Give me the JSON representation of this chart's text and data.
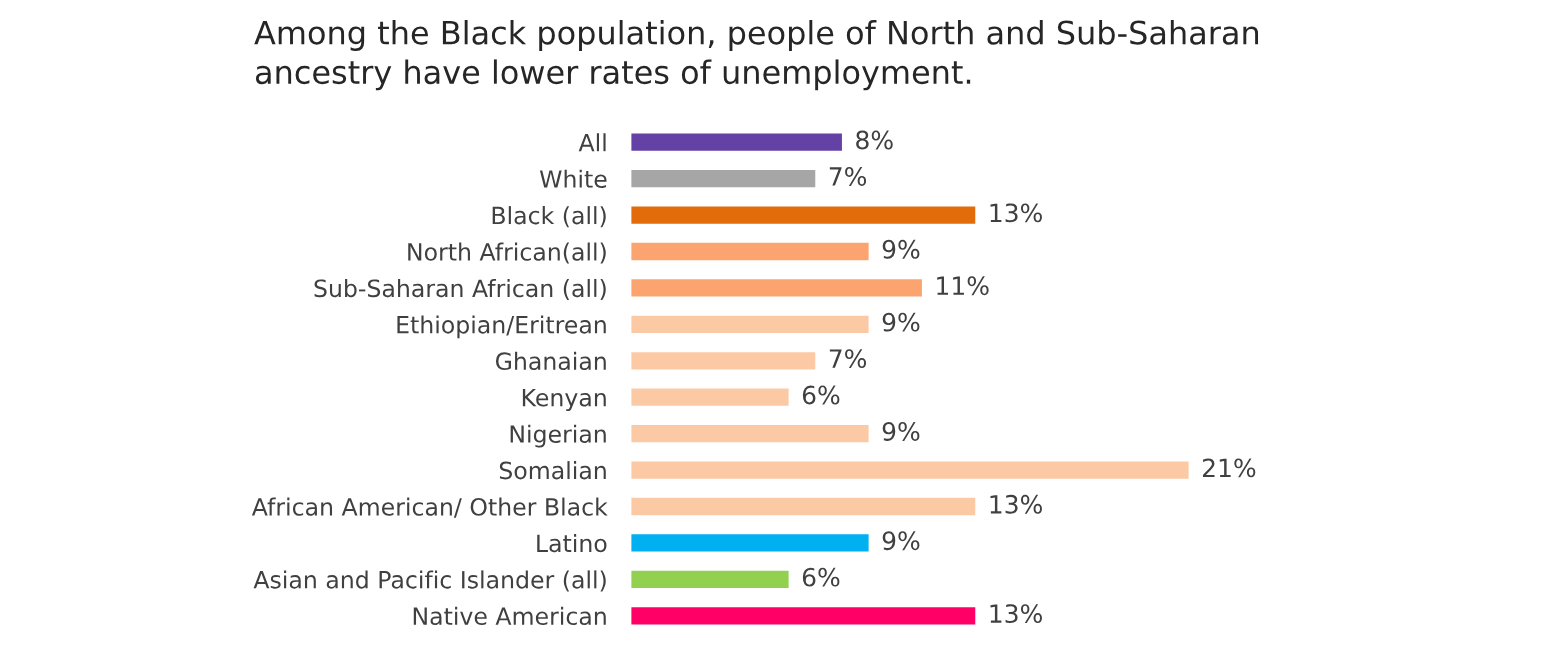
{
  "chart_data": {
    "type": "bar",
    "orientation": "horizontal",
    "title": "Among the Black population, people of North and Sub-Saharan\nancestry have lower rates of unemployment.",
    "categories": [
      "All",
      "White",
      "Black (all)",
      "North African(all)",
      "Sub-Saharan African (all)",
      "Ethiopian/Eritrean",
      "Ghanaian",
      "Kenyan",
      "Nigerian",
      "Somalian",
      "African American/ Other Black",
      "Latino",
      "Asian and Pacific Islander (all)",
      "Native American"
    ],
    "values": [
      8,
      7,
      13,
      9,
      11,
      9,
      7,
      6,
      9,
      21,
      13,
      9,
      6,
      13
    ],
    "value_labels": [
      "8%",
      "7%",
      "13%",
      "9%",
      "11%",
      "9%",
      "7%",
      "6%",
      "9%",
      "21%",
      "13%",
      "9%",
      "6%",
      "13%"
    ],
    "colors": [
      "#6441a5",
      "#a6a6a6",
      "#e36c0a",
      "#fba46f",
      "#fba46f",
      "#fcc9a5",
      "#fcc9a5",
      "#fcc9a5",
      "#fcc9a5",
      "#fcc9a5",
      "#fcc9a5",
      "#00b0f0",
      "#92d050",
      "#ff0066"
    ],
    "grid": false,
    "legend": false
  }
}
